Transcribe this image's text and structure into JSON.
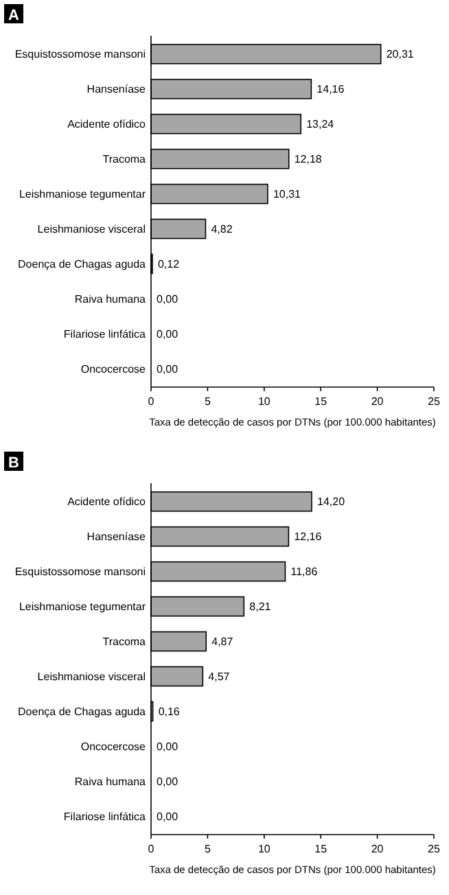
{
  "chart_data": [
    {
      "type": "bar",
      "title": "A",
      "orientation": "horizontal",
      "categories": [
        "Esquistossomose mansoni",
        "Hanseníase",
        "Acidente ofídico",
        "Tracoma",
        "Leishmaniose tegumentar",
        "Leishmaniose visceral",
        "Doença de Chagas aguda",
        "Raiva humana",
        "Filariose linfática",
        "Oncocercose"
      ],
      "values": [
        20.31,
        14.16,
        13.24,
        12.18,
        10.31,
        4.82,
        0.12,
        0,
        0,
        0
      ],
      "value_labels": [
        "20,31",
        "14,16",
        "13,24",
        "12,18",
        "10,31",
        "4,82",
        "0,12",
        "0,00",
        "0,00",
        "0,00"
      ],
      "color": "#a6a6a6",
      "xlim": [
        0,
        25
      ],
      "xticks": [
        0,
        5,
        10,
        15,
        20,
        25
      ],
      "xlabel": "Taxa de detecção de casos por DTNs (por 100.000 habitantes)",
      "grid": false
    },
    {
      "type": "bar",
      "title": "B",
      "orientation": "horizontal",
      "categories": [
        "Acidente ofídico",
        "Hanseníase",
        "Esquistossomose mansoni",
        "Leishmaniose tegumentar",
        "Tracoma",
        "Leishmaniose visceral",
        "Doença de Chagas aguda",
        "Oncocercose",
        "Raiva humana",
        "Filariose linfática"
      ],
      "values": [
        14.2,
        12.16,
        11.86,
        8.21,
        4.87,
        4.57,
        0.16,
        0,
        0,
        0
      ],
      "value_labels": [
        "14,20",
        "12,16",
        "11,86",
        "8,21",
        "4,87",
        "4,57",
        "0,16",
        "0,00",
        "0,00",
        "0,00"
      ],
      "color": "#a6a6a6",
      "xlim": [
        0,
        25
      ],
      "xticks": [
        0,
        5,
        10,
        15,
        20,
        25
      ],
      "xlabel": "Taxa de detecção de casos por DTNs (por 100.000 habitantes)",
      "grid": false
    }
  ]
}
